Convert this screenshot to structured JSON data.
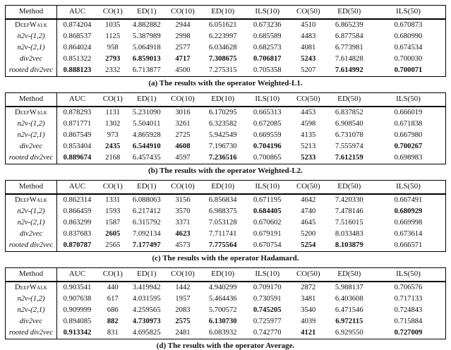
{
  "column_headers": [
    "Method",
    "AUC",
    "CO(1)",
    "ED(1)",
    "CO(10)",
    "ED(10)",
    "ILS(10)",
    "CO(50)",
    "ED(50)",
    "ILS(50)"
  ],
  "tables": [
    {
      "id": "a",
      "caption": "(a) The results with the operator Weighted-L1.",
      "rows": [
        {
          "method": "DeepWalk",
          "variant": "smallcaps",
          "values": [
            "0.874204",
            "1035",
            "4.882882",
            "2944",
            "6.051621",
            "0.673236",
            "4510",
            "6.865239",
            "0.670873"
          ],
          "bold": []
        },
        {
          "method": "n2v-(1,2)",
          "variant": "italic",
          "values": [
            "0.868537",
            "1125",
            "5.387989",
            "2998",
            "6.223997",
            "0.685589",
            "4483",
            "6.877584",
            "0.680990"
          ],
          "bold": []
        },
        {
          "method": "n2v-(2,1)",
          "variant": "italic",
          "values": [
            "0.864024",
            "958",
            "5.064918",
            "2577",
            "6.034628",
            "0.682573",
            "4081",
            "6.773981",
            "0.674534"
          ],
          "bold": []
        },
        {
          "method": "div2vec",
          "variant": "italic",
          "values": [
            "0.851322",
            "2793",
            "6.859013",
            "4717",
            "7.308675",
            "0.706817",
            "5243",
            "7.614828",
            "0.700030"
          ],
          "bold": [
            1,
            2,
            3,
            4,
            5,
            6
          ]
        },
        {
          "method": "rooted div2vec",
          "variant": "italic",
          "values": [
            "0.888123",
            "2332",
            "6.713877",
            "4500",
            "7.275315",
            "0.705358",
            "5207",
            "7.614992",
            "0.700071"
          ],
          "bold": [
            0,
            7,
            8
          ]
        }
      ]
    },
    {
      "id": "b",
      "caption": "(b) The results with the operator Weighted-L2.",
      "rows": [
        {
          "method": "DeepWalk",
          "variant": "smallcaps",
          "values": [
            "0.878293",
            "1131",
            "5.231090",
            "3016",
            "6.170295",
            "0.665313",
            "4453",
            "6.837852",
            "0.666019"
          ],
          "bold": []
        },
        {
          "method": "n2v-(1,2)",
          "variant": "italic",
          "values": [
            "0.871771",
            "1302",
            "5.504011",
            "3261",
            "6.323582",
            "0.672085",
            "4598",
            "6.908540",
            "0.671838"
          ],
          "bold": []
        },
        {
          "method": "n2v-(2,1)",
          "variant": "italic",
          "values": [
            "0.867549",
            "973",
            "4.865928",
            "2725",
            "5.942549",
            "0.669559",
            "4135",
            "6.731078",
            "0.667980"
          ],
          "bold": []
        },
        {
          "method": "div2vec",
          "variant": "italic",
          "values": [
            "0.853404",
            "2435",
            "6.544910",
            "4608",
            "7.196730",
            "0.704196",
            "5213",
            "7.555974",
            "0.700267"
          ],
          "bold": [
            1,
            2,
            3,
            5,
            8
          ]
        },
        {
          "method": "rooted div2vec",
          "variant": "italic",
          "values": [
            "0.889674",
            "2168",
            "6.457435",
            "4597",
            "7.236516",
            "0.700865",
            "5233",
            "7.612159",
            "0.698983"
          ],
          "bold": [
            0,
            4,
            6,
            7
          ]
        }
      ]
    },
    {
      "id": "c",
      "caption": "(c) The results with the operator Hadamard.",
      "rows": [
        {
          "method": "DeepWalk",
          "variant": "smallcaps",
          "values": [
            "0.862314",
            "1331",
            "6.088063",
            "3156",
            "6.856834",
            "0.671195",
            "4642",
            "7.420330",
            "0.667491"
          ],
          "bold": []
        },
        {
          "method": "n2v-(1,2)",
          "variant": "italic",
          "values": [
            "0.866459",
            "1593",
            "6.217412",
            "3570",
            "6.988375",
            "0.684405",
            "4740",
            "7.478146",
            "0.680929"
          ],
          "bold": [
            5,
            8
          ]
        },
        {
          "method": "n2v-(2,1)",
          "variant": "italic",
          "values": [
            "0.863299",
            "1587",
            "6.315792",
            "3371",
            "7.053128",
            "0.670602",
            "4645",
            "7.516015",
            "0.669998"
          ],
          "bold": []
        },
        {
          "method": "div2vec",
          "variant": "italic",
          "values": [
            "0.837683",
            "2605",
            "7.092134",
            "4623",
            "7.711741",
            "0.679191",
            "5200",
            "8.033483",
            "0.673614"
          ],
          "bold": [
            1,
            3
          ]
        },
        {
          "method": "rooted div2vec",
          "variant": "italic",
          "values": [
            "0.870787",
            "2565",
            "7.177497",
            "4573",
            "7.775564",
            "0.670754",
            "5254",
            "8.103879",
            "0.666571"
          ],
          "bold": [
            0,
            2,
            4,
            6,
            7
          ]
        }
      ]
    },
    {
      "id": "d",
      "caption": "(d) The results with the operator Average.",
      "rows": [
        {
          "method": "DeepWalk",
          "variant": "smallcaps",
          "values": [
            "0.903541",
            "440",
            "3.419942",
            "1442",
            "4.940299",
            "0.709170",
            "2872",
            "5.988137",
            "0.706576"
          ],
          "bold": []
        },
        {
          "method": "n2v-(1,2)",
          "variant": "italic",
          "values": [
            "0.907638",
            "617",
            "4.031595",
            "1957",
            "5.464436",
            "0.730591",
            "3481",
            "6.403608",
            "0.717133"
          ],
          "bold": []
        },
        {
          "method": "n2v-(2,1)",
          "variant": "italic",
          "values": [
            "0.909999",
            "686",
            "4.259565",
            "2083",
            "5.700572",
            "0.745205",
            "3540",
            "6.471546",
            "0.724843"
          ],
          "bold": [
            5
          ]
        },
        {
          "method": "div2vec",
          "variant": "italic",
          "values": [
            "0.894085",
            "882",
            "4.730973",
            "2575",
            "6.130730",
            "0.725977",
            "4039",
            "6.972115",
            "0.715884"
          ],
          "bold": [
            1,
            2,
            3,
            4,
            7
          ]
        },
        {
          "method": "rooted div2vec",
          "variant": "italic",
          "values": [
            "0.913342",
            "831",
            "4.695825",
            "2481",
            "6.083932",
            "0.742770",
            "4121",
            "6.929550",
            "0.727009"
          ],
          "bold": [
            0,
            6,
            8
          ]
        }
      ]
    }
  ]
}
